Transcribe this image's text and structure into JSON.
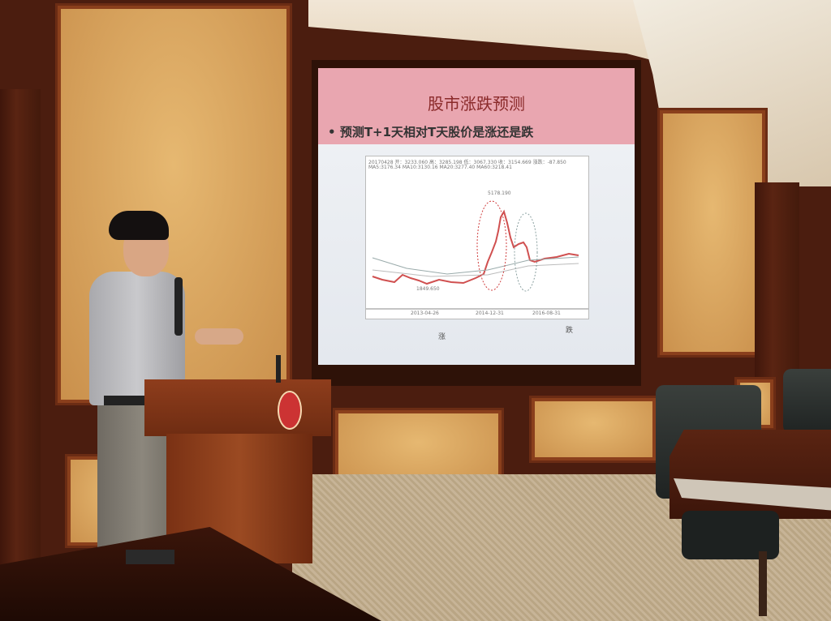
{
  "slide": {
    "title": "股市涨跌预测",
    "bullet": "预测T+1天相对T天股价是涨还是跌",
    "chart_header_line1": "20170428 开：3233.060 高：3285.198 低：3067.330 收：3154.669 涨跌：-87.850",
    "chart_header_line2": "MA5:3176.34  MA10:3130.16  MA20:3277.40  MA60:3218.41",
    "peak_label": "5178.190",
    "trough_label": "1849.650",
    "x_ticks": [
      "2013-04-26",
      "2014-12-31",
      "2016-08-31"
    ],
    "rise_label": "涨",
    "fall_label": "跌",
    "colors": {
      "header": "#e9a6b0",
      "title": "#8a2a2a",
      "up": "#e05050",
      "down": "#3a9a70",
      "rise_circle": "#d04040",
      "fall_circle": "#8aa0a0"
    }
  },
  "podium": {
    "emblem": "university-seal"
  }
}
